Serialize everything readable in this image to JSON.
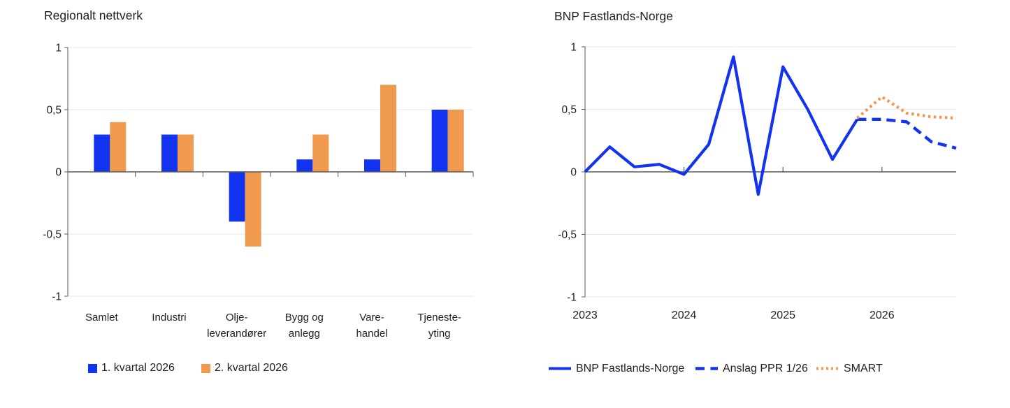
{
  "colors": {
    "blue": "#1233f0",
    "orange": "#ef9a4e",
    "axis": "#595959",
    "grid": "#e7e7e7",
    "text": "#1f1f1f"
  },
  "chart_data": [
    {
      "type": "bar",
      "title": "Regionalt nettverk",
      "categories": [
        "Samlet",
        "Industri",
        "Olje-leverandører",
        "Bygg og anlegg",
        "Varehandel",
        "Tjenesteyting"
      ],
      "category_labels": [
        [
          "Samlet"
        ],
        [
          "Industri"
        ],
        [
          "Olje-",
          "leverandører"
        ],
        [
          "Bygg og",
          "anlegg"
        ],
        [
          "Vare-",
          "handel"
        ],
        [
          "Tjeneste-",
          "yting"
        ]
      ],
      "series": [
        {
          "name": "1. kvartal 2026",
          "color": "#1233f0",
          "values": [
            0.3,
            0.3,
            -0.4,
            0.1,
            0.1,
            0.5
          ]
        },
        {
          "name": "2. kvartal 2026",
          "color": "#ef9a4e",
          "values": [
            0.4,
            0.3,
            -0.6,
            0.3,
            0.7,
            0.5
          ]
        }
      ],
      "ylim": [
        -1,
        1
      ],
      "yticks": [
        1,
        0.5,
        0,
        -0.5,
        -1
      ],
      "ytick_labels": [
        "1",
        "0,5",
        "0",
        "-0,5",
        "-1"
      ],
      "grid": "horizontal",
      "legend_position": "bottom"
    },
    {
      "type": "line",
      "title": "BNP Fastlands-Norge",
      "x_axis": "quarterly, 2023Q1 to 2026Q4",
      "xtick_labels": [
        "2023",
        "2024",
        "2025",
        "2026"
      ],
      "ylim": [
        -1,
        1
      ],
      "yticks": [
        1,
        0.5,
        0,
        -0.5,
        -1
      ],
      "ytick_labels": [
        "1",
        "0,5",
        "0",
        "-0,5",
        "-1"
      ],
      "series": [
        {
          "name": "BNP Fastlands-Norge",
          "style": "solid",
          "color": "#1233f0",
          "x": [
            0,
            1,
            2,
            3,
            4,
            5,
            6,
            7,
            8,
            9,
            10,
            11
          ],
          "values": [
            0,
            0.2,
            0.04,
            0.06,
            -0.02,
            0.22,
            0.92,
            -0.18,
            0.84,
            0.5,
            0.1,
            0.42
          ]
        },
        {
          "name": "Anslag PPR 1/26",
          "style": "dashed",
          "color": "#1233f0",
          "x": [
            11,
            12,
            13,
            14,
            15
          ],
          "values": [
            0.42,
            0.42,
            0.4,
            0.24,
            0.19
          ]
        },
        {
          "name": "SMART",
          "style": "dotted",
          "color": "#ef9a4e",
          "x": [
            11,
            12,
            13,
            14,
            15
          ],
          "values": [
            0.43,
            0.6,
            0.47,
            0.44,
            0.43
          ]
        }
      ],
      "grid": "horizontal",
      "legend_position": "bottom"
    }
  ]
}
